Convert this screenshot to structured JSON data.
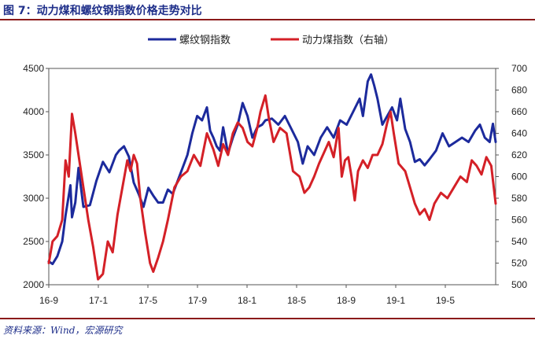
{
  "header": {
    "title": "图 7：动力煤和螺纹钢指数价格走势对比"
  },
  "footer": {
    "source": "资料来源：Wind，宏源研究"
  },
  "chart_data": {
    "type": "line",
    "x_tick_labels": [
      "16-9",
      "17-1",
      "17-5",
      "17-9",
      "18-1",
      "18-5",
      "18-9",
      "19-1",
      "19-5"
    ],
    "y_left": {
      "ylim": [
        2000,
        4500
      ],
      "ticks": [
        "2000",
        "2500",
        "3000",
        "3500",
        "4000",
        "4500"
      ]
    },
    "y_right": {
      "ylim": [
        500,
        700
      ],
      "ticks": [
        "500",
        "520",
        "540",
        "560",
        "580",
        "600",
        "620",
        "640",
        "660",
        "680",
        "700"
      ]
    },
    "grid": false,
    "legend_position": "top",
    "x_range": [
      2016.667,
      2019.417
    ],
    "series": [
      {
        "name": "螺纹钢指数",
        "axis": "left",
        "color": "#1c2a9c",
        "points": [
          [
            2016.667,
            2270
          ],
          [
            2016.69,
            2240
          ],
          [
            2016.72,
            2330
          ],
          [
            2016.75,
            2500
          ],
          [
            2016.77,
            2800
          ],
          [
            2016.8,
            3150
          ],
          [
            2016.81,
            2780
          ],
          [
            2016.83,
            2950
          ],
          [
            2016.85,
            3350
          ],
          [
            2016.88,
            2900
          ],
          [
            2016.92,
            2920
          ],
          [
            2016.96,
            3200
          ],
          [
            2017.0,
            3420
          ],
          [
            2017.04,
            3300
          ],
          [
            2017.08,
            3500
          ],
          [
            2017.1,
            3550
          ],
          [
            2017.13,
            3600
          ],
          [
            2017.16,
            3480
          ],
          [
            2017.19,
            3180
          ],
          [
            2017.22,
            3050
          ],
          [
            2017.25,
            2900
          ],
          [
            2017.28,
            3120
          ],
          [
            2017.31,
            3030
          ],
          [
            2017.34,
            2950
          ],
          [
            2017.37,
            2950
          ],
          [
            2017.4,
            3100
          ],
          [
            2017.43,
            3050
          ],
          [
            2017.46,
            3200
          ],
          [
            2017.5,
            3400
          ],
          [
            2017.52,
            3500
          ],
          [
            2017.55,
            3750
          ],
          [
            2017.58,
            3950
          ],
          [
            2017.61,
            3900
          ],
          [
            2017.64,
            4050
          ],
          [
            2017.66,
            3780
          ],
          [
            2017.68,
            3700
          ],
          [
            2017.7,
            3600
          ],
          [
            2017.72,
            3550
          ],
          [
            2017.74,
            3820
          ],
          [
            2017.77,
            3520
          ],
          [
            2017.8,
            3700
          ],
          [
            2017.83,
            3850
          ],
          [
            2017.86,
            4100
          ],
          [
            2017.89,
            3950
          ],
          [
            2017.92,
            3700
          ],
          [
            2017.95,
            3820
          ],
          [
            2017.98,
            3850
          ],
          [
            2018.0,
            3900
          ],
          [
            2018.04,
            3920
          ],
          [
            2018.08,
            3850
          ],
          [
            2018.12,
            3950
          ],
          [
            2018.16,
            3800
          ],
          [
            2018.2,
            3650
          ],
          [
            2018.23,
            3400
          ],
          [
            2018.26,
            3600
          ],
          [
            2018.3,
            3500
          ],
          [
            2018.34,
            3700
          ],
          [
            2018.38,
            3820
          ],
          [
            2018.42,
            3700
          ],
          [
            2018.46,
            3900
          ],
          [
            2018.5,
            3850
          ],
          [
            2018.54,
            4000
          ],
          [
            2018.58,
            4150
          ],
          [
            2018.6,
            3950
          ],
          [
            2018.63,
            4350
          ],
          [
            2018.65,
            4430
          ],
          [
            2018.67,
            4300
          ],
          [
            2018.69,
            4150
          ],
          [
            2018.72,
            3850
          ],
          [
            2018.75,
            3950
          ],
          [
            2018.78,
            4050
          ],
          [
            2018.81,
            3900
          ],
          [
            2018.83,
            4150
          ],
          [
            2018.86,
            3800
          ],
          [
            2018.89,
            3650
          ],
          [
            2018.92,
            3420
          ],
          [
            2018.95,
            3450
          ],
          [
            2018.98,
            3380
          ],
          [
            2019.01,
            3450
          ],
          [
            2019.05,
            3550
          ],
          [
            2019.09,
            3750
          ],
          [
            2019.13,
            3600
          ],
          [
            2019.17,
            3650
          ],
          [
            2019.21,
            3700
          ],
          [
            2019.25,
            3650
          ],
          [
            2019.29,
            3780
          ],
          [
            2019.32,
            3850
          ],
          [
            2019.35,
            3700
          ],
          [
            2019.38,
            3650
          ],
          [
            2019.4,
            3860
          ],
          [
            2019.417,
            3650
          ]
        ]
      },
      {
        "name": "动力煤指数（右轴）",
        "axis": "right",
        "color": "#d42027",
        "points": [
          [
            2016.667,
            520
          ],
          [
            2016.69,
            540
          ],
          [
            2016.72,
            545
          ],
          [
            2016.75,
            560
          ],
          [
            2016.77,
            615
          ],
          [
            2016.79,
            600
          ],
          [
            2016.81,
            658
          ],
          [
            2016.83,
            640
          ],
          [
            2016.85,
            620
          ],
          [
            2016.88,
            590
          ],
          [
            2016.91,
            560
          ],
          [
            2016.94,
            535
          ],
          [
            2016.97,
            505
          ],
          [
            2017.0,
            510
          ],
          [
            2017.03,
            540
          ],
          [
            2017.06,
            530
          ],
          [
            2017.09,
            565
          ],
          [
            2017.12,
            590
          ],
          [
            2017.15,
            615
          ],
          [
            2017.17,
            605
          ],
          [
            2017.19,
            620
          ],
          [
            2017.21,
            612
          ],
          [
            2017.23,
            580
          ],
          [
            2017.26,
            548
          ],
          [
            2017.29,
            520
          ],
          [
            2017.31,
            512
          ],
          [
            2017.34,
            525
          ],
          [
            2017.37,
            540
          ],
          [
            2017.4,
            560
          ],
          [
            2017.44,
            590
          ],
          [
            2017.48,
            600
          ],
          [
            2017.52,
            605
          ],
          [
            2017.56,
            620
          ],
          [
            2017.6,
            610
          ],
          [
            2017.64,
            640
          ],
          [
            2017.68,
            625
          ],
          [
            2017.71,
            610
          ],
          [
            2017.74,
            630
          ],
          [
            2017.77,
            620
          ],
          [
            2017.8,
            640
          ],
          [
            2017.83,
            650
          ],
          [
            2017.86,
            645
          ],
          [
            2017.89,
            632
          ],
          [
            2017.92,
            628
          ],
          [
            2017.95,
            645
          ],
          [
            2017.97,
            660
          ],
          [
            2018.0,
            675
          ],
          [
            2018.02,
            655
          ],
          [
            2018.05,
            632
          ],
          [
            2018.09,
            645
          ],
          [
            2018.13,
            640
          ],
          [
            2018.17,
            605
          ],
          [
            2018.21,
            600
          ],
          [
            2018.24,
            585
          ],
          [
            2018.27,
            590
          ],
          [
            2018.3,
            600
          ],
          [
            2018.33,
            612
          ],
          [
            2018.36,
            622
          ],
          [
            2018.39,
            632
          ],
          [
            2018.42,
            618
          ],
          [
            2018.45,
            645
          ],
          [
            2018.47,
            600
          ],
          [
            2018.49,
            615
          ],
          [
            2018.51,
            618
          ],
          [
            2018.53,
            600
          ],
          [
            2018.55,
            578
          ],
          [
            2018.57,
            605
          ],
          [
            2018.6,
            615
          ],
          [
            2018.63,
            608
          ],
          [
            2018.66,
            620
          ],
          [
            2018.69,
            620
          ],
          [
            2018.72,
            630
          ],
          [
            2018.75,
            650
          ],
          [
            2018.77,
            660
          ],
          [
            2018.79,
            640
          ],
          [
            2018.82,
            612
          ],
          [
            2018.86,
            605
          ],
          [
            2018.89,
            590
          ],
          [
            2018.92,
            575
          ],
          [
            2018.95,
            565
          ],
          [
            2018.98,
            570
          ],
          [
            2019.01,
            560
          ],
          [
            2019.04,
            575
          ],
          [
            2019.08,
            585
          ],
          [
            2019.12,
            580
          ],
          [
            2019.16,
            590
          ],
          [
            2019.2,
            600
          ],
          [
            2019.24,
            595
          ],
          [
            2019.27,
            615
          ],
          [
            2019.3,
            610
          ],
          [
            2019.33,
            602
          ],
          [
            2019.36,
            618
          ],
          [
            2019.39,
            610
          ],
          [
            2019.417,
            575
          ]
        ]
      }
    ]
  }
}
